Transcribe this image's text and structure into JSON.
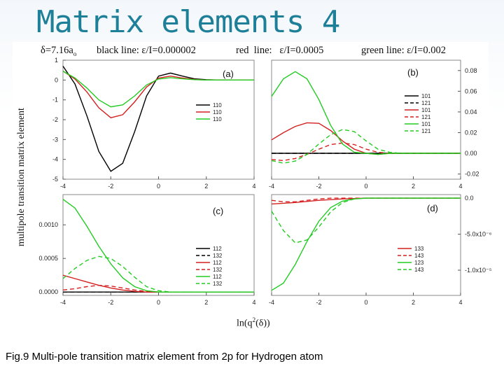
{
  "slide": {
    "title": "Matrix elements 4",
    "caption": "Fig.9 Multi-pole transition matrix element from 2p for Hydrogen atom"
  },
  "figure": {
    "header_delta": "δ=7.16a",
    "header_delta_sub": "o",
    "header_black": "black line: ε/I=0.000002",
    "header_red": "red  line:   ε/I=0.0005",
    "header_green": "green line: ε/I=0.002",
    "ylabel": "multipole transition matrix element",
    "xlabel": "ln(q",
    "xlabel_sup": "2",
    "xlabel_tail": "(δ))"
  },
  "colors": {
    "black": "#000000",
    "red": "#d42020",
    "green": "#22cc22",
    "title": "#1d7f98"
  },
  "chart_data": [
    {
      "type": "line",
      "panel_label": "(a)",
      "xlim": [
        -4,
        4
      ],
      "ylim": [
        -5,
        1
      ],
      "y_axis_side": "left",
      "xticks": [
        "-4",
        "-2",
        "0",
        "2",
        "4"
      ],
      "yticks": [
        "1",
        "0",
        "-1",
        "-2",
        "-3",
        "-4",
        "-5"
      ],
      "ytick_values": [
        1,
        0,
        -1,
        -2,
        -3,
        -4,
        -5
      ],
      "legend_position": "right-middle",
      "series": [
        {
          "name": "110",
          "color": "black",
          "dash": false,
          "x": [
            -4,
            -3.5,
            -3,
            -2.5,
            -2,
            -1.5,
            -1,
            -0.5,
            0,
            0.5,
            1,
            1.5,
            2,
            2.5,
            3
          ],
          "y": [
            0.7,
            -0.2,
            -1.8,
            -3.6,
            -4.6,
            -4.2,
            -2.6,
            -0.8,
            0.2,
            0.35,
            0.2,
            0.06,
            0.02,
            0.0,
            0.0
          ]
        },
        {
          "name": "110",
          "color": "red",
          "dash": false,
          "x": [
            -4,
            -3.5,
            -3,
            -2.5,
            -2,
            -1.5,
            -1,
            -0.5,
            0,
            0.5,
            1,
            1.5,
            2,
            2.5,
            3,
            3.5,
            4
          ],
          "y": [
            0.45,
            0.05,
            -0.6,
            -1.4,
            -1.9,
            -1.75,
            -1.1,
            -0.35,
            0.1,
            0.2,
            0.1,
            0.03,
            0.0,
            0.0,
            0.0,
            0.0,
            0.0
          ]
        },
        {
          "name": "110",
          "color": "green",
          "dash": false,
          "x": [
            -4,
            -3.5,
            -3,
            -2.5,
            -2,
            -1.5,
            -1,
            -0.5,
            0,
            0.5,
            1,
            1.5,
            2,
            2.5,
            3,
            3.5,
            4
          ],
          "y": [
            0.45,
            0.1,
            -0.4,
            -1.0,
            -1.35,
            -1.25,
            -0.8,
            -0.25,
            0.05,
            0.12,
            0.06,
            0.02,
            0.0,
            0.0,
            0.0,
            0.0,
            0.0
          ]
        }
      ]
    },
    {
      "type": "line",
      "panel_label": "(b)",
      "xlim": [
        -4,
        4
      ],
      "ylim": [
        -0.025,
        0.09
      ],
      "y_axis_side": "right",
      "xticks": [
        "-4",
        "-2",
        "0",
        "2",
        "4"
      ],
      "yticks": [
        "0.08",
        "0.06",
        "0.04",
        "0.02",
        "0.00",
        "-0.02"
      ],
      "ytick_values": [
        0.08,
        0.06,
        0.04,
        0.02,
        0.0,
        -0.02
      ],
      "legend_position": "right-middle",
      "series": [
        {
          "name": "101",
          "color": "black",
          "dash": false,
          "x": [
            -4,
            -3,
            -2,
            -1,
            0,
            1,
            2,
            3,
            4
          ],
          "y": [
            0,
            0,
            0,
            0,
            0,
            0,
            0,
            0,
            0
          ]
        },
        {
          "name": "121",
          "color": "black",
          "dash": true,
          "x": [
            -4,
            -3,
            -2,
            -1,
            0,
            1,
            2,
            3,
            4
          ],
          "y": [
            0,
            0,
            0,
            0,
            0,
            0,
            0,
            0,
            0
          ]
        },
        {
          "name": "101",
          "color": "red",
          "dash": false,
          "x": [
            -4,
            -3.5,
            -3,
            -2.5,
            -2,
            -1.5,
            -1,
            -0.5,
            0,
            0.5,
            1,
            2,
            3,
            4
          ],
          "y": [
            0.013,
            0.02,
            0.026,
            0.0295,
            0.029,
            0.022,
            0.012,
            0.004,
            0.0,
            -0.001,
            0.0,
            0.0,
            0.0,
            0.0
          ]
        },
        {
          "name": "121",
          "color": "red",
          "dash": true,
          "x": [
            -4,
            -3.5,
            -3,
            -2.5,
            -2,
            -1.5,
            -1,
            -0.5,
            0,
            0.5,
            1,
            1.5,
            2,
            3,
            4
          ],
          "y": [
            -0.006,
            -0.007,
            -0.005,
            -0.001,
            0.004,
            0.0085,
            0.01,
            0.0085,
            0.004,
            0.001,
            0.0,
            0.0,
            0.0,
            0.0,
            0.0
          ]
        },
        {
          "name": "101",
          "color": "green",
          "dash": false,
          "x": [
            -4,
            -3.5,
            -3,
            -2.5,
            -2,
            -1.5,
            -1,
            -0.5,
            0,
            0.5,
            1,
            2,
            3,
            4
          ],
          "y": [
            0.055,
            0.072,
            0.079,
            0.072,
            0.052,
            0.027,
            0.009,
            0.001,
            0.0,
            -0.001,
            0.0,
            0.0,
            0.0,
            0.0
          ]
        },
        {
          "name": "121",
          "color": "green",
          "dash": true,
          "x": [
            -4,
            -3.5,
            -3,
            -2.5,
            -2,
            -1.5,
            -1,
            -0.5,
            0,
            0.5,
            1,
            1.5,
            2,
            3,
            4
          ],
          "y": [
            -0.007,
            -0.0095,
            -0.0075,
            -0.001,
            0.009,
            0.018,
            0.023,
            0.021,
            0.012,
            0.004,
            0.001,
            0.0,
            0.0,
            0.0,
            0.0
          ]
        }
      ]
    },
    {
      "type": "line",
      "panel_label": "(c)",
      "xlim": [
        -4,
        4
      ],
      "ylim": [
        -5e-05,
        0.00145
      ],
      "y_axis_side": "left",
      "xticks": [
        "-4",
        "-2",
        "0",
        "2",
        "4"
      ],
      "yticks": [
        "0.0010",
        "0.0005",
        "0.0000"
      ],
      "ytick_values": [
        0.001,
        0.0005,
        0.0
      ],
      "legend_position": "right-bottom",
      "series": [
        {
          "name": "112",
          "color": "black",
          "dash": false,
          "x": [
            -4,
            -3,
            -2,
            -1,
            0,
            1,
            2,
            3,
            4
          ],
          "y": [
            0,
            0,
            0,
            0,
            0,
            0,
            0,
            0,
            0
          ]
        },
        {
          "name": "132",
          "color": "black",
          "dash": true,
          "x": [
            -4,
            -3,
            -2,
            -1,
            0,
            1,
            2,
            3,
            4
          ],
          "y": [
            0,
            0,
            0,
            0,
            0,
            0,
            0,
            0,
            0
          ]
        },
        {
          "name": "112",
          "color": "red",
          "dash": false,
          "x": [
            -4,
            -3.5,
            -3,
            -2.5,
            -2,
            -1.5,
            -1,
            -0.5,
            0,
            0.5,
            1,
            2,
            3,
            4
          ],
          "y": [
            0.00025,
            0.0002,
            0.00015,
            0.0001,
            6e-05,
            3e-05,
            1e-05,
            0.0,
            0.0,
            0.0,
            0.0,
            0.0,
            0.0,
            0.0
          ]
        },
        {
          "name": "132",
          "color": "red",
          "dash": true,
          "x": [
            -4,
            -3.5,
            -3,
            -2.5,
            -2,
            -1.5,
            -1,
            -0.5,
            0,
            0.5,
            1,
            2,
            3,
            4
          ],
          "y": [
            3e-05,
            5e-05,
            8e-05,
            0.0001,
            9e-05,
            6e-05,
            3e-05,
            1e-05,
            0.0,
            0.0,
            0.0,
            0.0,
            0.0,
            0.0
          ]
        },
        {
          "name": "112",
          "color": "green",
          "dash": false,
          "x": [
            -4,
            -3.5,
            -3,
            -2.5,
            -2,
            -1.5,
            -1,
            -0.5,
            0,
            0.5,
            1,
            2,
            3,
            4
          ],
          "y": [
            0.00138,
            0.00125,
            0.00098,
            0.00068,
            0.00042,
            0.00021,
            8e-05,
            2e-05,
            0.0,
            0.0,
            0.0,
            0.0,
            0.0,
            0.0
          ]
        },
        {
          "name": "132",
          "color": "green",
          "dash": true,
          "x": [
            -4,
            -3.5,
            -3,
            -2.5,
            -2,
            -1.5,
            -1,
            -0.5,
            0,
            0.5,
            1,
            2,
            3,
            4
          ],
          "y": [
            0.0002,
            0.00035,
            0.00047,
            0.00053,
            0.0005,
            0.00038,
            0.00022,
            8e-05,
            2e-05,
            0.0,
            0.0,
            0.0,
            0.0,
            0.0
          ]
        }
      ]
    },
    {
      "type": "line",
      "panel_label": "(d)",
      "xlim": [
        -4,
        4
      ],
      "ylim": [
        -1.35e-05,
        5e-07
      ],
      "y_axis_side": "right",
      "xticks": [
        "-4",
        "-2",
        "0",
        "2",
        "4"
      ],
      "yticks": [
        "0.0",
        "-5.0x10⁻⁶",
        "-1.0x10⁻⁵"
      ],
      "ytick_values": [
        0.0,
        -5e-06,
        -1e-05
      ],
      "legend_position": "right-bottom",
      "series": [
        {
          "name": "133",
          "color": "red",
          "dash": false,
          "x": [
            -4,
            -3,
            -2,
            -1,
            0,
            1,
            2,
            3,
            4
          ],
          "y": [
            -8e-07,
            -6e-07,
            -3e-07,
            -1e-07,
            0.0,
            0.0,
            0.0,
            0.0,
            0.0
          ]
        },
        {
          "name": "143",
          "color": "red",
          "dash": true,
          "x": [
            -4,
            -3.5,
            -3,
            -2.5,
            -2,
            -1.5,
            -1,
            -0.5,
            0,
            1,
            2,
            3,
            4
          ],
          "y": [
            -3e-07,
            -5e-07,
            -5e-07,
            -3e-07,
            -1e-07,
            0.0,
            0.0,
            0.0,
            0.0,
            0.0,
            0.0,
            0.0,
            0.0
          ]
        },
        {
          "name": "123",
          "color": "green",
          "dash": false,
          "x": [
            -4,
            -3.5,
            -3,
            -2.5,
            -2,
            -1.5,
            -1,
            -0.5,
            0,
            1,
            2,
            3,
            4
          ],
          "y": [
            -1.28e-05,
            -1.18e-05,
            -9.2e-06,
            -6e-06,
            -3.2e-06,
            -1.3e-06,
            -4e-07,
            -1e-07,
            0.0,
            0.0,
            0.0,
            0.0,
            0.0
          ]
        },
        {
          "name": "143",
          "color": "green",
          "dash": true,
          "x": [
            -4,
            -3.5,
            -3,
            -2.5,
            -2,
            -1.5,
            -1,
            -0.5,
            0,
            1,
            2,
            3,
            4
          ],
          "y": [
            -1.8e-06,
            -4.5e-06,
            -6.2e-06,
            -5.8e-06,
            -4e-06,
            -1.9e-06,
            -6e-07,
            -1e-07,
            0.0,
            0.0,
            0.0,
            0.0,
            0.0
          ]
        }
      ]
    }
  ]
}
